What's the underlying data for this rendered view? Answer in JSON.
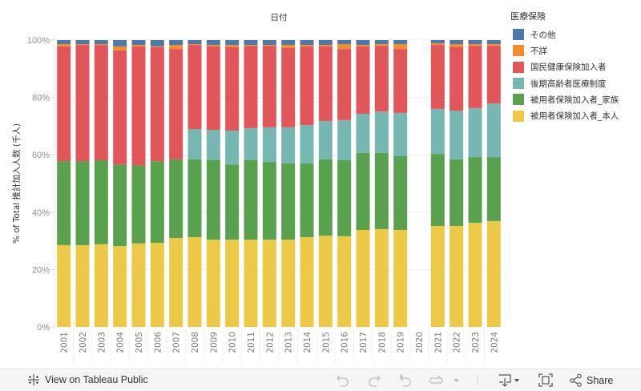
{
  "chart_data": {
    "type": "bar",
    "stacked": true,
    "normalized": true,
    "title": "日付",
    "xlabel": "",
    "ylabel": "% of Total 推計加入人数 (千人)",
    "ylim": [
      0,
      100
    ],
    "y_ticks": [
      "0%",
      "20%",
      "40%",
      "60%",
      "80%",
      "100%"
    ],
    "y_tick_values": [
      0,
      20,
      40,
      60,
      80,
      100
    ],
    "grid": true,
    "legend_title": "医療保険",
    "legend_position": "right",
    "categories": [
      "2001",
      "2002",
      "2003",
      "2004",
      "2005",
      "2006",
      "2007",
      "2008",
      "2009",
      "2010",
      "2011",
      "2012",
      "2013",
      "2014",
      "2015",
      "2016",
      "2017",
      "2018",
      "2019",
      "2020",
      "2021",
      "2022",
      "2023",
      "2024"
    ],
    "series": [
      {
        "name": "被用者保険加入者_本人",
        "color": "#EDC948",
        "values": [
          28.5,
          28.5,
          28.8,
          28.2,
          29.1,
          29.3,
          31.0,
          31.3,
          30.4,
          30.4,
          30.4,
          30.4,
          30.4,
          31.3,
          31.8,
          31.6,
          33.8,
          34.1,
          33.8,
          null,
          35.2,
          35.2,
          36.3,
          36.9
        ]
      },
      {
        "name": "被用者保険加入者_家族",
        "color": "#59A14F",
        "values": [
          29.3,
          29.3,
          29.3,
          28.4,
          27.2,
          28.5,
          27.4,
          27.1,
          27.7,
          26.2,
          27.7,
          27.1,
          26.6,
          25.7,
          26.6,
          26.5,
          26.8,
          26.5,
          25.7,
          null,
          25.1,
          23.2,
          22.9,
          22.3
        ]
      },
      {
        "name": "後期高齢者医療制度",
        "color": "#76B7B2",
        "values": [
          0,
          0,
          0,
          0,
          0,
          0,
          0,
          10.6,
          10.6,
          11.8,
          11.2,
          12.1,
          12.6,
          13.4,
          13.4,
          14.0,
          13.7,
          14.5,
          15.1,
          null,
          15.7,
          17.0,
          17.1,
          18.7
        ]
      },
      {
        "name": "国民健康保険加入者",
        "color": "#E15759",
        "values": [
          40.0,
          40.5,
          40.2,
          39.8,
          41.5,
          39.7,
          38.5,
          29.3,
          29.1,
          29.1,
          28.7,
          28.4,
          27.6,
          27.4,
          26.0,
          24.8,
          23.5,
          22.9,
          22.3,
          null,
          22.3,
          22.1,
          21.7,
          20.1
        ]
      },
      {
        "name": "不詳",
        "color": "#F28E2B",
        "values": [
          0.8,
          0.3,
          0.3,
          1.4,
          0.5,
          0.3,
          1.4,
          0.3,
          0.5,
          0.8,
          0.3,
          0.3,
          1.1,
          0.5,
          0.5,
          1.7,
          0.5,
          0.6,
          1.7,
          null,
          0.6,
          1.1,
          0.6,
          0.6
        ]
      },
      {
        "name": "その他",
        "color": "#4E79A7",
        "values": [
          1.4,
          1.4,
          1.4,
          2.2,
          1.7,
          2.2,
          1.7,
          1.4,
          1.7,
          1.7,
          1.7,
          1.7,
          1.7,
          1.7,
          1.7,
          1.4,
          1.7,
          1.4,
          1.4,
          null,
          1.1,
          1.4,
          1.4,
          1.4
        ]
      }
    ],
    "legend_order": [
      "その他",
      "不詳",
      "国民健康保険加入者",
      "後期高齢者医療制度",
      "被用者保険加入者_家族",
      "被用者保険加入者_本人"
    ]
  },
  "toolbar": {
    "view_on_label": "View on Tableau Public",
    "share_label": "Share",
    "icons": [
      "tableau-logo-icon",
      "undo-icon",
      "redo-icon",
      "revert-icon",
      "refresh-icon",
      "dropdown-icon",
      "download-icon",
      "fullscreen-icon",
      "share-icon"
    ]
  }
}
